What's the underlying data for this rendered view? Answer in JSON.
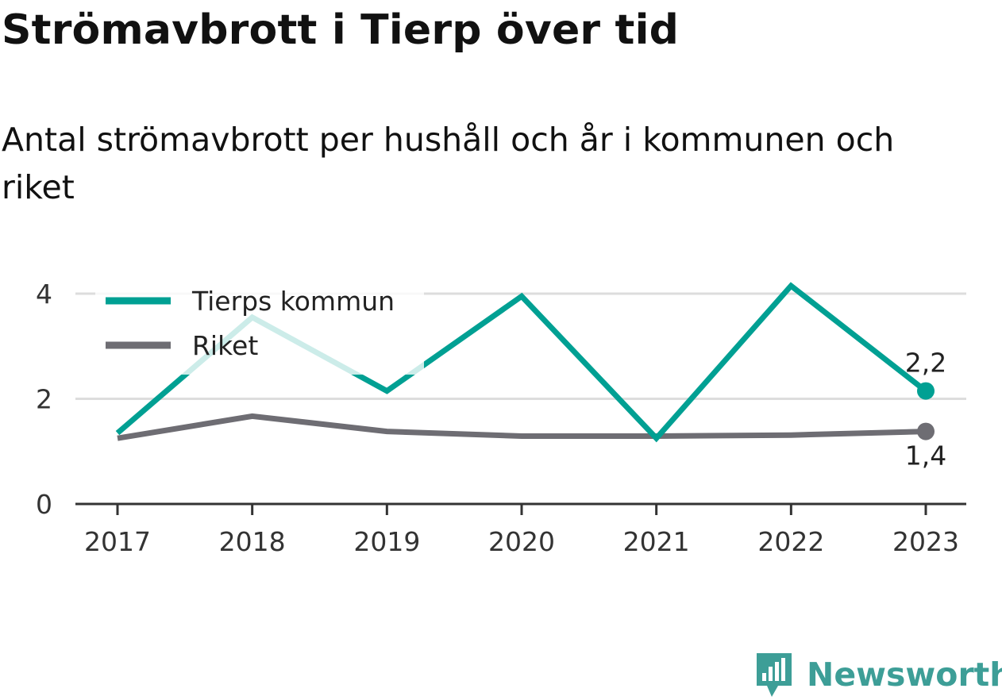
{
  "title": "Strömavbrott i Tierp över tid",
  "subtitle": "Antal strömavbrott per hushåll och år i kommunen och riket",
  "brand": {
    "name": "Newsworthy",
    "color": "#3d9e97",
    "icon": "newsworthy-logo-icon"
  },
  "chart_data": {
    "type": "line",
    "x": [
      "2017",
      "2018",
      "2019",
      "2020",
      "2021",
      "2022",
      "2023"
    ],
    "series": [
      {
        "name": "Tierps kommun",
        "color": "#00a093",
        "values": [
          1.35,
          3.55,
          2.15,
          3.95,
          1.25,
          4.15,
          2.15
        ],
        "end_label": "2,2"
      },
      {
        "name": "Riket",
        "color": "#6e6d73",
        "values": [
          1.25,
          1.67,
          1.38,
          1.29,
          1.29,
          1.31,
          1.38
        ],
        "end_label": "1,4"
      }
    ],
    "yticks": [
      "0",
      "2",
      "4"
    ],
    "ylim": [
      0,
      4.4
    ],
    "grid": true,
    "legend": "top-left"
  }
}
